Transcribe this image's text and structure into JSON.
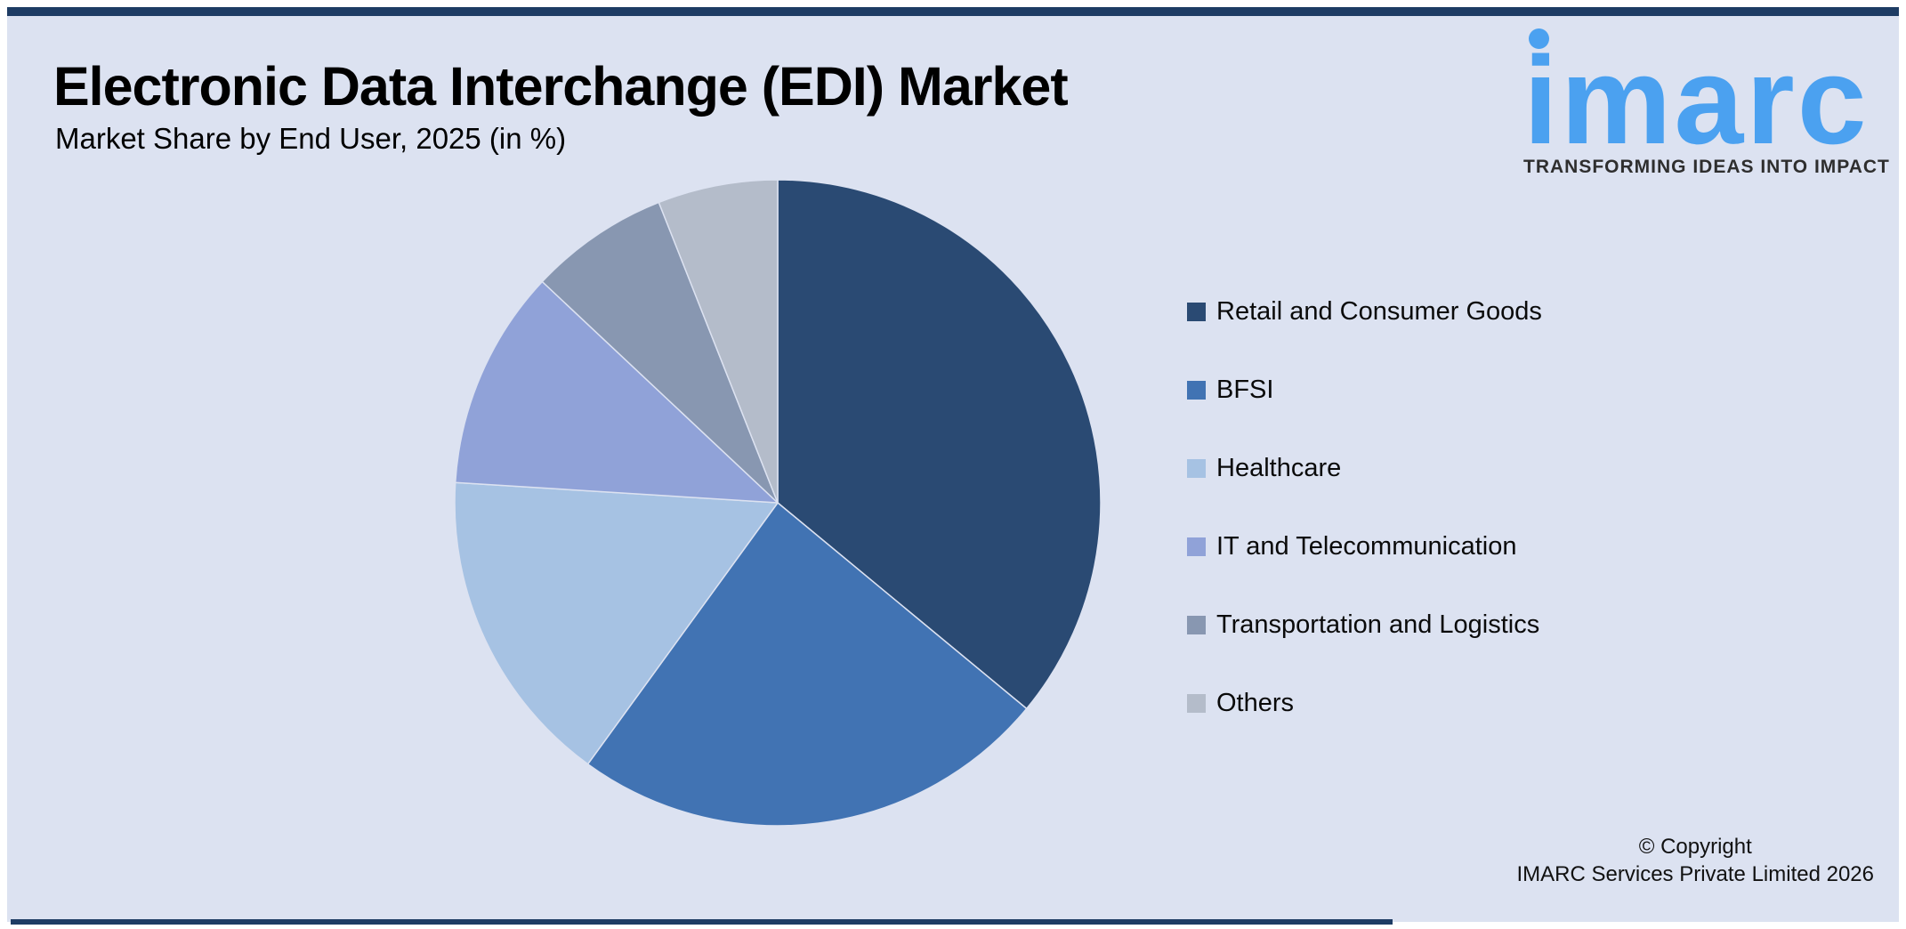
{
  "header": {
    "title": "Electronic Data Interchange (EDI) Market",
    "subtitle": "Market Share by End User, 2025 (in %)"
  },
  "logo": {
    "brand": "imarc",
    "tagline": "TRANSFORMING IDEAS INTO IMPACT",
    "brand_color": "#4ba1f0"
  },
  "chart_data": {
    "type": "pie",
    "title": "Market Share by End User, 2025 (in %)",
    "unit": "%",
    "start_angle_deg": 0,
    "direction": "clockwise",
    "legend_position": "right",
    "slices": [
      {
        "label": "Retail and Consumer Goods",
        "value": 36,
        "color": "#2a4a73"
      },
      {
        "label": "BFSI",
        "value": 24,
        "color": "#4173b3"
      },
      {
        "label": "Healthcare",
        "value": 16,
        "color": "#a6c2e3"
      },
      {
        "label": "IT and Telecommunication",
        "value": 11,
        "color": "#90a2d8"
      },
      {
        "label": "Transportation and Logistics",
        "value": 7,
        "color": "#8897b1"
      },
      {
        "label": "Others",
        "value": 6,
        "color": "#b4bcca"
      }
    ]
  },
  "footer": {
    "copyright_line1": "© Copyright",
    "copyright_line2": "IMARC Services Private Limited 2026"
  },
  "colors": {
    "page_background": "#ffffff",
    "card_background": "#dce2f1",
    "border_navy": "#1e3c64",
    "text": "#000000"
  }
}
